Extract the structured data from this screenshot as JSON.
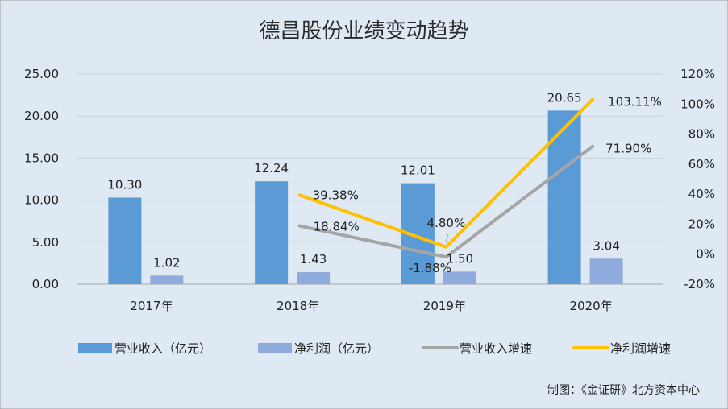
{
  "chart_data": {
    "type": "bar",
    "title": "德昌股份业绩变动趋势",
    "categories": [
      "2017年",
      "2018年",
      "2019年",
      "2020年"
    ],
    "series": [
      {
        "name": "营业收入（亿元）",
        "kind": "bar",
        "axis": "left",
        "color": "#5b9bd5",
        "values": [
          10.3,
          12.24,
          12.01,
          20.65
        ],
        "labels": [
          "10.30",
          "12.24",
          "12.01",
          "20.65"
        ]
      },
      {
        "name": "净利润（亿元）",
        "kind": "bar",
        "axis": "left",
        "color": "#8faadc",
        "values": [
          1.02,
          1.43,
          1.5,
          3.04
        ],
        "labels": [
          "1.02",
          "1.43",
          "1.50",
          "3.04"
        ]
      },
      {
        "name": "营业收入增速",
        "kind": "line",
        "axis": "right",
        "color": "#a5a5a5",
        "values": [
          null,
          18.84,
          -1.88,
          71.9
        ],
        "labels": [
          "",
          "18.84%",
          "-1.88%",
          "71.90%"
        ]
      },
      {
        "name": "净利润增速",
        "kind": "line",
        "axis": "right",
        "color": "#ffc000",
        "values": [
          null,
          39.38,
          4.8,
          103.11
        ],
        "labels": [
          "",
          "39.38%",
          "4.80%",
          "103.11%"
        ]
      }
    ],
    "y_left": {
      "min": 0,
      "max": 25,
      "step": 5,
      "ticks": [
        "0.00",
        "5.00",
        "10.00",
        "15.00",
        "20.00",
        "25.00"
      ]
    },
    "y_right": {
      "min": -20,
      "max": 120,
      "step": 20,
      "ticks": [
        "-20%",
        "0%",
        "20%",
        "40%",
        "60%",
        "80%",
        "100%",
        "120%"
      ]
    },
    "grid": true,
    "legend_position": "bottom"
  },
  "credit": "制图：《金证研》北方资本中心"
}
